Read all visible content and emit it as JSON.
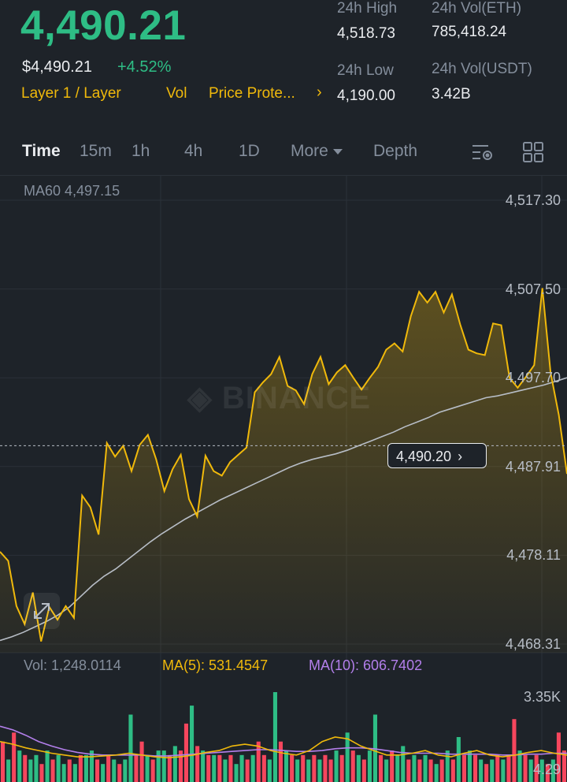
{
  "header": {
    "last_price": "4,490.21",
    "usd_price": "$4,490.21",
    "change_pct": "+4.52%",
    "tags": [
      "Layer 1 / Layer",
      "Vol",
      "Price Prote..."
    ],
    "stats": {
      "high_label": "24h High",
      "high_value": "4,518.73",
      "low_label": "24h Low",
      "low_value": "4,190.00",
      "vol_eth_label": "24h Vol(ETH)",
      "vol_eth_value": "785,418.24",
      "vol_usdt_label": "24h Vol(USDT)",
      "vol_usdt_value": "3.42B"
    }
  },
  "tabs": [
    {
      "label": "Time",
      "active": true
    },
    {
      "label": "15m"
    },
    {
      "label": "1h"
    },
    {
      "label": "4h"
    },
    {
      "label": "1D"
    },
    {
      "label": "More"
    },
    {
      "label": "Depth"
    }
  ],
  "icons": {
    "indicator": "indicator-settings-icon",
    "layout": "grid-layout-icon",
    "expand": "expand-icon",
    "more_caret": "caret-down-icon"
  },
  "colors": {
    "up": "#2ebd85",
    "down": "#f6465d",
    "accent": "#f0b90b",
    "ma10": "#b37feb",
    "ma60": "#b7bdc6",
    "bg": "#1e2329"
  },
  "main_chart": {
    "ma60_label": "MA60 4,497.15",
    "watermark": "BINANCE",
    "current_price_tag": "4,490.20",
    "current_price": 4490.2
  },
  "volume": {
    "vol_label": "Vol: 1,248.0114",
    "ma5_label": "MA(5): 531.4547",
    "ma10_label": "MA(10): 606.7402",
    "axis_top": "3.35K",
    "axis_bottom": "4.29"
  },
  "chart_data": {
    "type": "area",
    "y_ticks": [
      "4,517.30",
      "4,507.50",
      "4,497.70",
      "4,487.91",
      "4,478.11",
      "4,468.31"
    ],
    "ylim": [
      4468.31,
      4517.3
    ],
    "series": [
      {
        "values": [
          4478.5,
          4477.5,
          4472.5,
          4470.5,
          4474.0,
          4468.6,
          4472.4,
          4471.0,
          4472.5,
          4471.2,
          4484.7,
          4483.4,
          4480.4,
          4490.5,
          4489.0,
          4490.2,
          4487.4,
          4490.3,
          4491.4,
          4488.7,
          4485.2,
          4487.6,
          4489.2,
          4484.3,
          4482.4,
          4489.1,
          4487.4,
          4486.9,
          4488.4,
          4489.2,
          4490.0,
          4496.1,
          4497.2,
          4498.1,
          4500.0,
          4496.8,
          4496.3,
          4494.8,
          4498.1,
          4500.0,
          4497.0,
          4498.3,
          4499.1,
          4497.7,
          4496.4,
          4497.7,
          4498.9,
          4500.8,
          4501.5,
          4500.6,
          4504.5,
          4507.2,
          4506.0,
          4507.2,
          4504.9,
          4506.9,
          4503.6,
          4500.8,
          4500.4,
          4500.2,
          4503.7,
          4503.5,
          4497.7,
          4496.6,
          4497.8,
          4499.1,
          4507.6,
          4498.3,
          4493.6,
          4487.1
        ]
      },
      {
        "name": "MA60",
        "values": [
          4468.7,
          4469.1,
          4469.6,
          4470.2,
          4470.8,
          4471.5,
          4472.4,
          4473.6,
          4474.8,
          4475.8,
          4476.6,
          4477.6,
          4478.6,
          4479.6,
          4480.5,
          4481.3,
          4482.1,
          4482.8,
          4483.5,
          4484.2,
          4484.8,
          4485.4,
          4486.0,
          4486.6,
          4487.2,
          4487.8,
          4488.3,
          4488.7,
          4489.0,
          4489.3,
          4489.7,
          4490.2,
          4490.7,
          4491.2,
          4491.7,
          4492.3,
          4492.8,
          4493.3,
          4493.9,
          4494.3,
          4494.7,
          4495.1,
          4495.5,
          4495.7,
          4496.0,
          4496.3,
          4496.6,
          4496.9,
          4497.3,
          4497.7
        ]
      }
    ],
    "volume": {
      "bars": [
        {
          "v": 0.45,
          "up": false
        },
        {
          "v": 0.25,
          "up": true
        },
        {
          "v": 0.55,
          "up": false
        },
        {
          "v": 0.35,
          "up": true
        },
        {
          "v": 0.3,
          "up": false
        },
        {
          "v": 0.25,
          "up": true
        },
        {
          "v": 0.3,
          "up": true
        },
        {
          "v": 0.2,
          "up": false
        },
        {
          "v": 0.35,
          "up": true
        },
        {
          "v": 0.25,
          "up": false
        },
        {
          "v": 0.3,
          "up": true
        },
        {
          "v": 0.2,
          "up": true
        },
        {
          "v": 0.25,
          "up": false
        },
        {
          "v": 0.2,
          "up": true
        },
        {
          "v": 0.3,
          "up": false
        },
        {
          "v": 0.3,
          "up": true
        },
        {
          "v": 0.35,
          "up": true
        },
        {
          "v": 0.25,
          "up": false
        },
        {
          "v": 0.2,
          "up": true
        },
        {
          "v": 0.3,
          "up": false
        },
        {
          "v": 0.25,
          "up": true
        },
        {
          "v": 0.2,
          "up": false
        },
        {
          "v": 0.25,
          "up": true
        },
        {
          "v": 0.75,
          "up": true
        },
        {
          "v": 0.3,
          "up": false
        },
        {
          "v": 0.45,
          "up": false
        },
        {
          "v": 0.3,
          "up": true
        },
        {
          "v": 0.25,
          "up": false
        },
        {
          "v": 0.35,
          "up": true
        },
        {
          "v": 0.35,
          "up": true
        },
        {
          "v": 0.3,
          "up": false
        },
        {
          "v": 0.4,
          "up": true
        },
        {
          "v": 0.35,
          "up": false
        },
        {
          "v": 0.65,
          "up": false
        },
        {
          "v": 0.85,
          "up": true
        },
        {
          "v": 0.4,
          "up": false
        },
        {
          "v": 0.35,
          "up": true
        },
        {
          "v": 0.3,
          "up": false
        },
        {
          "v": 0.3,
          "up": true
        },
        {
          "v": 0.3,
          "up": false
        },
        {
          "v": 0.25,
          "up": true
        },
        {
          "v": 0.3,
          "up": false
        },
        {
          "v": 0.2,
          "up": true
        },
        {
          "v": 0.3,
          "up": true
        },
        {
          "v": 0.25,
          "up": false
        },
        {
          "v": 0.3,
          "up": true
        },
        {
          "v": 0.45,
          "up": false
        },
        {
          "v": 0.3,
          "up": false
        },
        {
          "v": 0.25,
          "up": true
        },
        {
          "v": 1.0,
          "up": true
        },
        {
          "v": 0.45,
          "up": false
        },
        {
          "v": 0.35,
          "up": true
        },
        {
          "v": 0.3,
          "up": false
        },
        {
          "v": 0.25,
          "up": true
        },
        {
          "v": 0.3,
          "up": false
        },
        {
          "v": 0.25,
          "up": true
        },
        {
          "v": 0.3,
          "up": false
        },
        {
          "v": 0.25,
          "up": true
        },
        {
          "v": 0.3,
          "up": false
        },
        {
          "v": 0.25,
          "up": false
        },
        {
          "v": 0.35,
          "up": true
        },
        {
          "v": 0.3,
          "up": false
        },
        {
          "v": 0.55,
          "up": true
        },
        {
          "v": 0.35,
          "up": false
        },
        {
          "v": 0.3,
          "up": true
        },
        {
          "v": 0.25,
          "up": false
        },
        {
          "v": 0.35,
          "up": true
        },
        {
          "v": 0.75,
          "up": true
        },
        {
          "v": 0.3,
          "up": false
        },
        {
          "v": 0.25,
          "up": true
        },
        {
          "v": 0.35,
          "up": false
        },
        {
          "v": 0.3,
          "up": true
        },
        {
          "v": 0.4,
          "up": true
        },
        {
          "v": 0.25,
          "up": false
        },
        {
          "v": 0.3,
          "up": true
        },
        {
          "v": 0.25,
          "up": false
        },
        {
          "v": 0.3,
          "up": true
        },
        {
          "v": 0.25,
          "up": false
        },
        {
          "v": 0.2,
          "up": true
        },
        {
          "v": 0.25,
          "up": false
        },
        {
          "v": 0.35,
          "up": true
        },
        {
          "v": 0.25,
          "up": false
        },
        {
          "v": 0.5,
          "up": true
        },
        {
          "v": 0.3,
          "up": false
        },
        {
          "v": 0.35,
          "up": true
        },
        {
          "v": 0.3,
          "up": false
        },
        {
          "v": 0.25,
          "up": true
        },
        {
          "v": 0.2,
          "up": false
        },
        {
          "v": 0.25,
          "up": true
        },
        {
          "v": 0.3,
          "up": false
        },
        {
          "v": 0.25,
          "up": true
        },
        {
          "v": 0.3,
          "up": false
        },
        {
          "v": 0.7,
          "up": false
        },
        {
          "v": 0.35,
          "up": true
        },
        {
          "v": 0.3,
          "up": false
        },
        {
          "v": 0.25,
          "up": true
        },
        {
          "v": 0.3,
          "up": false
        },
        {
          "v": 0.25,
          "up": true
        },
        {
          "v": 0.2,
          "up": false
        },
        {
          "v": 0.25,
          "up": true
        },
        {
          "v": 0.55,
          "up": false
        },
        {
          "v": 0.35,
          "up": false
        }
      ],
      "ma5": [
        0.45,
        0.42,
        0.38,
        0.35,
        0.32,
        0.3,
        0.28,
        0.28,
        0.29,
        0.3,
        0.32,
        0.3,
        0.28,
        0.27,
        0.28,
        0.3,
        0.33,
        0.35,
        0.4,
        0.42,
        0.4,
        0.35,
        0.32,
        0.3,
        0.35,
        0.45,
        0.5,
        0.48,
        0.4,
        0.35,
        0.3,
        0.3,
        0.32,
        0.35,
        0.3,
        0.28,
        0.32,
        0.35,
        0.3,
        0.28,
        0.3,
        0.33,
        0.35,
        0.32,
        0.3
      ],
      "ma10": [
        0.62,
        0.58,
        0.52,
        0.45,
        0.4,
        0.36,
        0.33,
        0.31,
        0.3,
        0.3,
        0.3,
        0.3,
        0.29,
        0.29,
        0.3,
        0.31,
        0.32,
        0.33,
        0.34,
        0.35,
        0.36,
        0.36,
        0.35,
        0.34,
        0.34,
        0.35,
        0.37,
        0.38,
        0.38,
        0.37,
        0.35,
        0.33,
        0.32,
        0.32,
        0.32,
        0.31,
        0.31,
        0.31,
        0.31,
        0.3,
        0.3,
        0.31,
        0.31,
        0.32,
        0.32
      ]
    }
  }
}
